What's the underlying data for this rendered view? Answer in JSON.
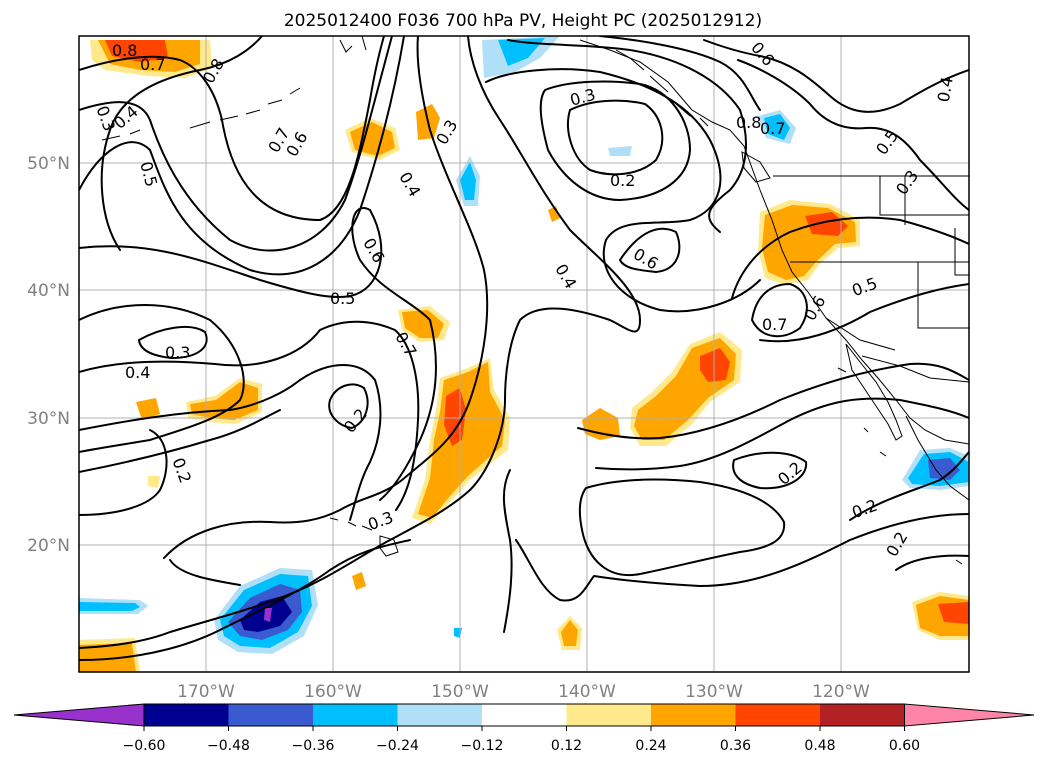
{
  "title": "2025012400 F036 700 hPa PV, Height PC (2025012912)",
  "map": {
    "lat_labels": [
      "50°N",
      "40°N",
      "30°N",
      "20°N"
    ],
    "lon_labels": [
      "170°W",
      "160°W",
      "150°W",
      "140°W",
      "130°W",
      "120°W"
    ]
  },
  "contour_labels": [
    "0.8",
    "0.7",
    "0.8",
    "0.3",
    "0.4",
    "0.5",
    "0.7",
    "0.6",
    "0.3",
    "0.4",
    "0.6",
    "0.5",
    "0.3",
    "0.4",
    "0.2",
    "0.2",
    "0.7",
    "0.3",
    "0.2",
    "0.6",
    "0.4",
    "0.8",
    "0.7",
    "0.6",
    "0.4",
    "0.5",
    "0.3",
    "0.5",
    "0.7",
    "0.6",
    "0.3",
    "0.2",
    "0.2",
    "0.2"
  ],
  "colorbar": {
    "ticks": [
      "−0.60",
      "−0.48",
      "−0.36",
      "−0.24",
      "−0.12",
      "0.12",
      "0.24",
      "0.36",
      "0.48",
      "0.60"
    ],
    "colors": [
      "#9932cc",
      "#000090",
      "#3a5bd0",
      "#00bfff",
      "#b0e0f8",
      "#ffffff",
      "#ffe98a",
      "#ffa500",
      "#ff4500",
      "#b22222",
      "#ff85a8"
    ]
  }
}
